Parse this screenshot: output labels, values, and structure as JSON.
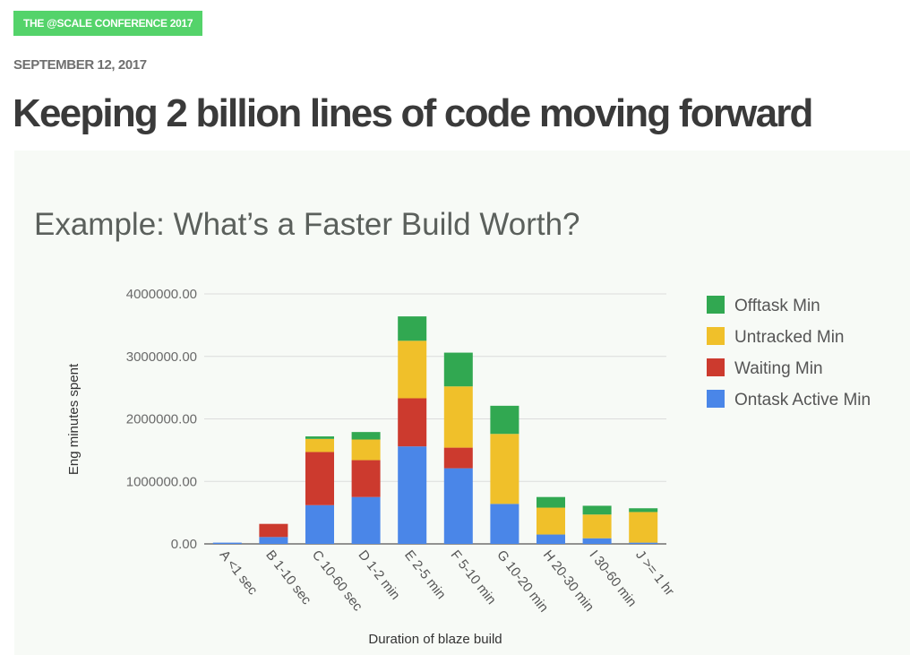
{
  "header": {
    "tag": "THE @SCALE CONFERENCE 2017",
    "date": "SEPTEMBER 12, 2017",
    "title": "Keeping 2 billion lines of code moving forward"
  },
  "colors": {
    "tag_bg": "#54d36a",
    "ontask": "#4a86e8",
    "waiting": "#cc3a2e",
    "untracked": "#f0c02a",
    "offtask": "#31a851"
  },
  "chart_data": {
    "type": "bar",
    "stacked": true,
    "title": "Example: What’s a Faster Build Worth?",
    "xlabel": "Duration of blaze build",
    "ylabel": "Eng minutes spent",
    "ylim": [
      0,
      4000000
    ],
    "yticks": [
      "0.00",
      "1000000.00",
      "2000000.00",
      "3000000.00",
      "4000000.00"
    ],
    "grid": true,
    "legend_position": "right",
    "categories": [
      "A <1 sec",
      "B 1-10 sec",
      "C 10-60 sec",
      "D 1-2 min",
      "E 2-5 min",
      "F 5-10 min",
      "G 10-20 min",
      "H 20-30 min",
      "I 30-60 min",
      "J >= 1 hr"
    ],
    "series": [
      {
        "name": "Ontask Active Min",
        "color": "#4a86e8",
        "values": [
          20000,
          110000,
          620000,
          750000,
          1560000,
          1210000,
          640000,
          150000,
          90000,
          20000
        ]
      },
      {
        "name": "Waiting Min",
        "color": "#cc3a2e",
        "values": [
          0,
          210000,
          850000,
          590000,
          770000,
          330000,
          0,
          0,
          0,
          0
        ]
      },
      {
        "name": "Untracked Min",
        "color": "#f0c02a",
        "values": [
          0,
          0,
          210000,
          330000,
          920000,
          980000,
          1120000,
          430000,
          380000,
          490000
        ]
      },
      {
        "name": "Offtask Min",
        "color": "#31a851",
        "values": [
          0,
          0,
          40000,
          120000,
          390000,
          540000,
          450000,
          170000,
          140000,
          60000
        ]
      }
    ]
  }
}
